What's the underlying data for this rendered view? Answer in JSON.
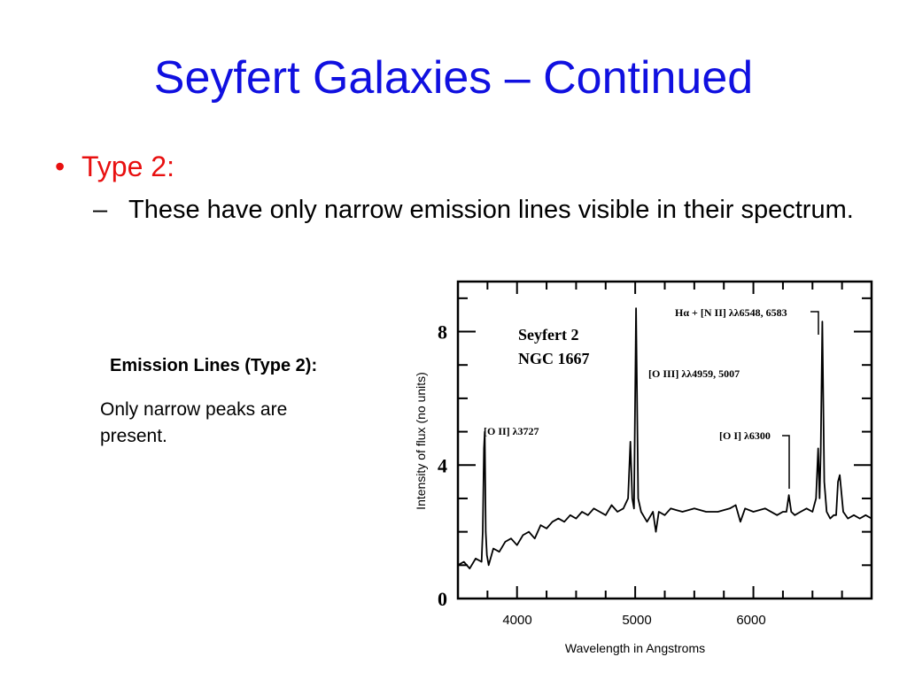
{
  "slide": {
    "title": "Seyfert Galaxies – Continued",
    "bullet_marker": "•",
    "bullet_1": "Type 2:",
    "sub_marker": "–",
    "sub_bullet": "These have only narrow emission lines visible in their spectrum.",
    "emission_title": "Emission Lines (Type 2):",
    "emission_text": "Only narrow peaks are present."
  },
  "chart_data": {
    "type": "line",
    "figure_text": {
      "object_name": "Seyfert 2",
      "galaxy": "NGC 1667",
      "y_ticks": [
        "0",
        "4",
        "8"
      ],
      "annotations": {
        "oii": "[O II] λ3727",
        "oiii": "[O III] λλ4959, 5007",
        "oi": "[O I] λ6300",
        "halpha": "Hα + [N II] λλ6548, 6583"
      }
    },
    "xlabel": "Wavelength in Angstroms",
    "ylabel": "Intensity of flux (no units)",
    "x_ticks": [
      "4000",
      "5000",
      "6000"
    ],
    "xlim": [
      3500,
      7000
    ],
    "ylim": [
      0,
      9.5
    ],
    "series": [
      {
        "x": [
          3500,
          3550,
          3600,
          3650,
          3700,
          3710,
          3720,
          3727,
          3735,
          3745,
          3760,
          3800,
          3850,
          3900,
          3950,
          4000,
          4050,
          4100,
          4150,
          4200,
          4250,
          4300,
          4350,
          4400,
          4450,
          4500,
          4550,
          4600,
          4650,
          4700,
          4750,
          4800,
          4850,
          4900,
          4940,
          4959,
          4975,
          4990,
          5007,
          5025,
          5050,
          5100,
          5150,
          5175,
          5200,
          5250,
          5300,
          5400,
          5500,
          5600,
          5700,
          5800,
          5850,
          5890,
          5930,
          6000,
          6100,
          6200,
          6250,
          6280,
          6300,
          6320,
          6350,
          6400,
          6450,
          6500,
          6530,
          6548,
          6560,
          6570,
          6583,
          6600,
          6620,
          6650,
          6680,
          6700,
          6716,
          6731,
          6760,
          6800,
          6850,
          6900,
          6950,
          7000
        ],
        "y": [
          1.0,
          1.1,
          0.9,
          1.2,
          1.1,
          2.0,
          4.5,
          5.0,
          2.0,
          1.3,
          1.0,
          1.5,
          1.4,
          1.7,
          1.8,
          1.6,
          1.9,
          2.0,
          1.8,
          2.2,
          2.1,
          2.3,
          2.4,
          2.3,
          2.5,
          2.4,
          2.6,
          2.5,
          2.7,
          2.6,
          2.5,
          2.8,
          2.6,
          2.7,
          3.0,
          4.7,
          3.0,
          2.7,
          8.7,
          3.0,
          2.6,
          2.3,
          2.6,
          2.0,
          2.6,
          2.5,
          2.7,
          2.6,
          2.7,
          2.6,
          2.6,
          2.7,
          2.8,
          2.3,
          2.7,
          2.6,
          2.7,
          2.5,
          2.6,
          2.6,
          3.1,
          2.6,
          2.5,
          2.6,
          2.7,
          2.6,
          3.0,
          4.5,
          3.0,
          4.4,
          8.3,
          3.5,
          2.6,
          2.4,
          2.5,
          2.5,
          3.5,
          3.7,
          2.6,
          2.4,
          2.5,
          2.4,
          2.5,
          2.4
        ]
      }
    ]
  }
}
